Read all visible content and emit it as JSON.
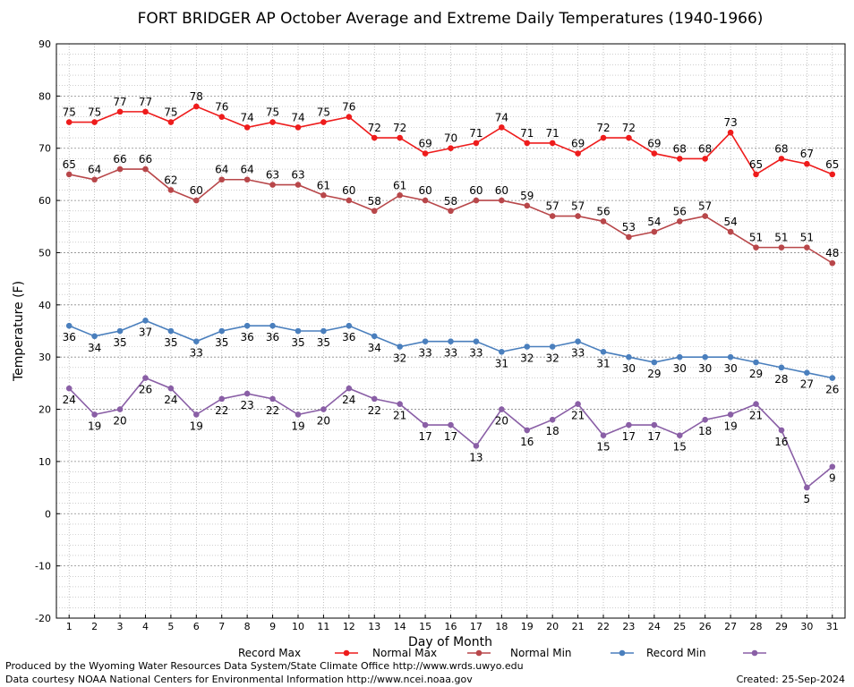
{
  "chart_data": {
    "type": "line",
    "title": "FORT BRIDGER AP October Average and Extreme Daily Temperatures (1940-1966)",
    "xlabel": "Day of Month",
    "ylabel": "Temperature (F)",
    "ylim": [
      -20,
      90
    ],
    "yticks": [
      -20,
      -10,
      0,
      10,
      20,
      30,
      40,
      50,
      60,
      70,
      80,
      90
    ],
    "x": [
      1,
      2,
      3,
      4,
      5,
      6,
      7,
      8,
      9,
      10,
      11,
      12,
      13,
      14,
      15,
      16,
      17,
      18,
      19,
      20,
      21,
      22,
      23,
      24,
      25,
      26,
      27,
      28,
      29,
      30,
      31
    ],
    "grid": true,
    "legend_position": "bottom",
    "series": [
      {
        "name": "Record Max",
        "color": "#ee1c1c",
        "values": [
          75,
          75,
          77,
          77,
          75,
          78,
          76,
          74,
          75,
          74,
          75,
          76,
          72,
          72,
          69,
          70,
          71,
          74,
          71,
          71,
          69,
          72,
          72,
          69,
          68,
          68,
          73,
          65,
          68,
          67,
          65
        ]
      },
      {
        "name": "Normal Max",
        "color": "#b8474a",
        "values": [
          65,
          64,
          66,
          66,
          62,
          60,
          64,
          64,
          63,
          63,
          61,
          60,
          58,
          61,
          60,
          58,
          60,
          60,
          59,
          57,
          57,
          56,
          53,
          54,
          56,
          57,
          54,
          51,
          51,
          51,
          48
        ]
      },
      {
        "name": "Normal Min",
        "color": "#4a7fbd",
        "values": [
          36,
          34,
          35,
          37,
          35,
          33,
          35,
          36,
          36,
          35,
          35,
          36,
          34,
          32,
          33,
          33,
          33,
          31,
          32,
          32,
          33,
          31,
          30,
          29,
          30,
          30,
          30,
          29,
          28,
          27,
          26
        ]
      },
      {
        "name": "Record Min",
        "color": "#8a5fa6",
        "values": [
          24,
          19,
          20,
          26,
          24,
          19,
          22,
          23,
          22,
          19,
          20,
          24,
          22,
          21,
          17,
          17,
          13,
          20,
          16,
          18,
          21,
          15,
          17,
          17,
          15,
          18,
          19,
          21,
          16,
          5,
          9
        ]
      }
    ]
  },
  "footer": {
    "line1": "Produced by the Wyoming Water Resources Data System/State Climate Office http://www.wrds.uwyo.edu",
    "line2": "Data courtesy NOAA National Centers for Environmental Information http://www.ncei.noaa.gov",
    "created": "Created:  25-Sep-2024"
  }
}
